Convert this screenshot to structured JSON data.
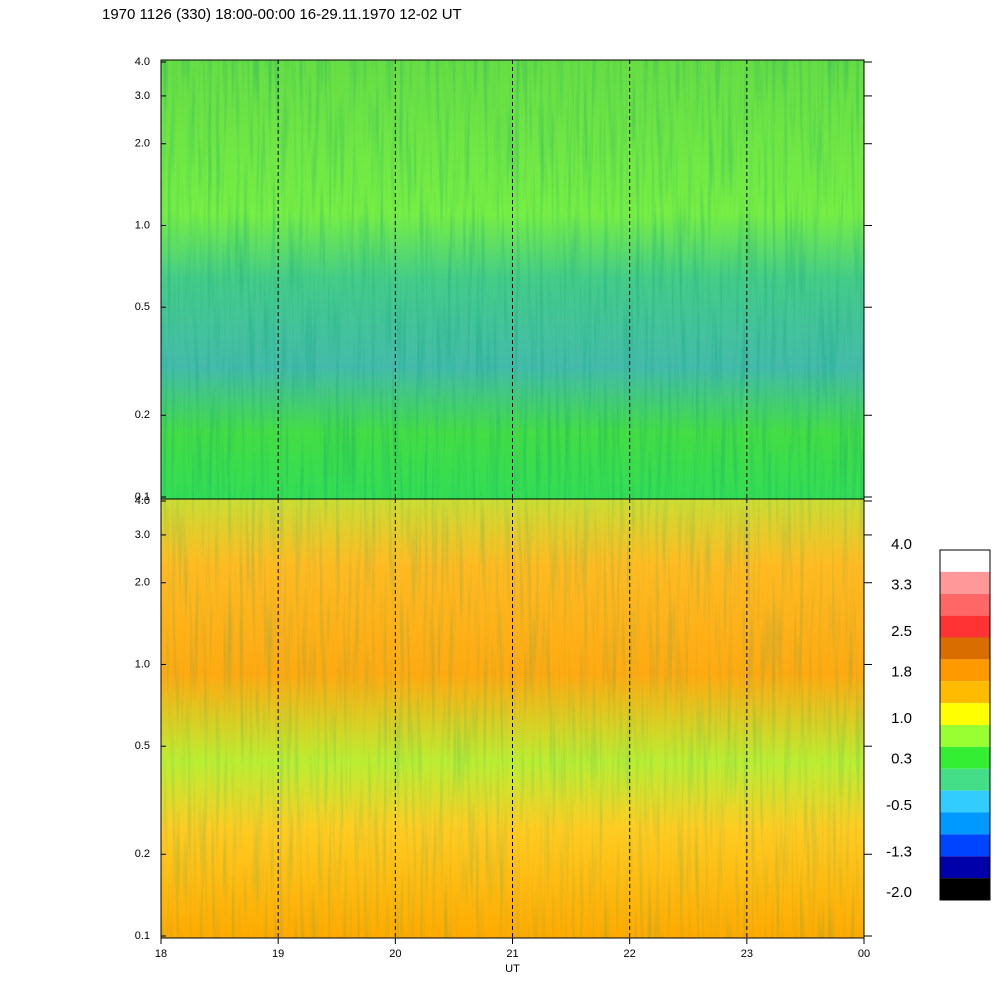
{
  "chart_data": [
    {
      "type": "heatmap",
      "title": "1970 1126 (330) 18:00-00:00 16-29.11.1970  12-02 UT",
      "xlim": [
        18,
        24
      ],
      "xticks": [
        18,
        19,
        20,
        21,
        22,
        23,
        {
          "value": 24,
          "label": "00"
        }
      ],
      "ylim": [
        0.1,
        4
      ],
      "yticks": [
        0.1,
        0.2,
        0.5,
        {
          "value": 1,
          "label": "1.0"
        },
        {
          "value": 2,
          "label": "2.0"
        },
        {
          "value": 3,
          "label": "3.0"
        },
        {
          "value": 4,
          "label": "4.0"
        }
      ],
      "log_y": true
    },
    {
      "type": "heatmap",
      "xlabel": "UT",
      "xlim": [
        18,
        24
      ],
      "xticks": [
        18,
        19,
        20,
        21,
        22,
        23,
        {
          "value": 24,
          "label": "00"
        }
      ],
      "ylim": [
        0.1,
        4
      ],
      "yticks": [
        0.1,
        0.2,
        0.5,
        {
          "value": 1,
          "label": "1.0"
        },
        {
          "value": 2,
          "label": "2.0"
        },
        {
          "value": 3,
          "label": "3.0"
        },
        {
          "value": 4,
          "label": "4.0"
        }
      ],
      "log_y": true,
      "colorbar": {
        "clim": [
          -2,
          4
        ],
        "colors": [
          "#ffffff",
          "#ff9999",
          "#ff6666",
          "#ff3333",
          "#d96d00",
          "#ff9900",
          "#ffbb00",
          "#ffff00",
          "#99ff33",
          "#33ee33",
          "#44dd88",
          "#33ccff",
          "#0099ff",
          "#0044ff",
          "#0000aa",
          "#000000"
        ],
        "ticks": [
          {
            "value": 4,
            "label": "4.0"
          },
          3.3,
          2.5,
          1.8,
          {
            "value": 1,
            "label": "1.0"
          },
          0.3,
          -0.5,
          -1.3,
          {
            "value": -2,
            "label": "-2.0"
          }
        ]
      }
    }
  ]
}
